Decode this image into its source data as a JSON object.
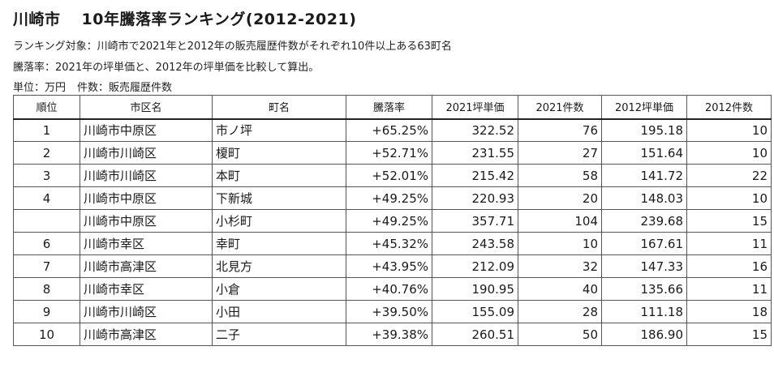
{
  "title": {
    "city": "川崎市",
    "main": "10年騰落率ランキング(2012-2021)"
  },
  "notes": {
    "line1": "ランキング対象：川崎市で2021年と2012年の販売履歴件数がそれぞれ10件以上ある63町名",
    "line2": "騰落率：2021年の坪単価と、2012年の坪単価を比較して算出。",
    "unit": "単位：万円",
    "count": "件数：販売履歴件数"
  },
  "table": {
    "headers": [
      "順位",
      "市区名",
      "町名",
      "騰落率",
      "2021坪単価",
      "2021件数",
      "2012坪単価",
      "2012件数"
    ],
    "rows": [
      [
        "1",
        "川崎市中原区",
        "市ノ坪",
        "+65.25%",
        "322.52",
        "76",
        "195.18",
        "10"
      ],
      [
        "2",
        "川崎市川崎区",
        "榎町",
        "+52.71%",
        "231.55",
        "27",
        "151.64",
        "10"
      ],
      [
        "3",
        "川崎市川崎区",
        "本町",
        "+52.01%",
        "215.42",
        "58",
        "141.72",
        "22"
      ],
      [
        "4",
        "川崎市中原区",
        "下新城",
        "+49.25%",
        "220.93",
        "20",
        "148.03",
        "10"
      ],
      [
        "",
        "川崎市中原区",
        "小杉町",
        "+49.25%",
        "357.71",
        "104",
        "239.68",
        "15"
      ],
      [
        "6",
        "川崎市幸区",
        "幸町",
        "+45.32%",
        "243.58",
        "10",
        "167.61",
        "11"
      ],
      [
        "7",
        "川崎市高津区",
        "北見方",
        "+43.95%",
        "212.09",
        "32",
        "147.33",
        "16"
      ],
      [
        "8",
        "川崎市幸区",
        "小倉",
        "+40.76%",
        "190.95",
        "40",
        "135.66",
        "11"
      ],
      [
        "9",
        "川崎市川崎区",
        "小田",
        "+39.50%",
        "155.09",
        "28",
        "111.18",
        "18"
      ],
      [
        "10",
        "川崎市高津区",
        "二子",
        "+39.38%",
        "260.51",
        "50",
        "186.90",
        "15"
      ]
    ]
  }
}
